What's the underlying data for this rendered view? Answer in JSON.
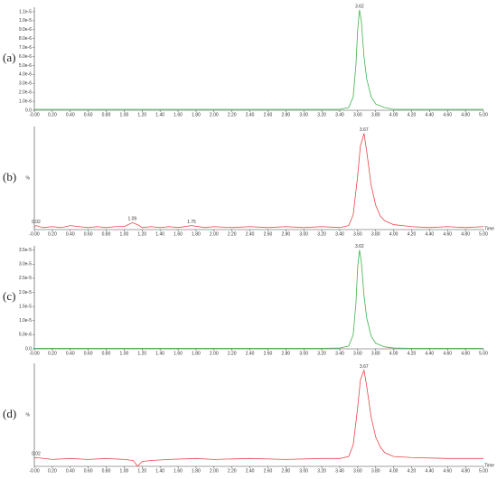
{
  "chart_data": [
    {
      "type": "line",
      "panel_label": "(a)",
      "color": "#3fb24a",
      "x": [
        0,
        0.4,
        0.8,
        1.2,
        1.6,
        2.0,
        2.4,
        2.8,
        3.2,
        3.4,
        3.5,
        3.55,
        3.58,
        3.6,
        3.62,
        3.64,
        3.67,
        3.7,
        3.75,
        3.8,
        3.9,
        4.0,
        4.2,
        4.6,
        5.0
      ],
      "values": [
        1e-07,
        1e-07,
        1e-07,
        1e-07,
        1e-07,
        1e-07,
        1e-07,
        1e-07,
        1e-07,
        1e-07,
        3e-07,
        1.5e-06,
        5e-06,
        9e-06,
        1.12e-05,
        1e-05,
        6e-06,
        3.5e-06,
        1.5e-06,
        7e-07,
        3e-07,
        1e-07,
        1e-07,
        1e-07,
        1e-07
      ],
      "annotations": [
        {
          "label": "3.62",
          "x": 3.62
        }
      ],
      "xlim": [
        0,
        5.0
      ],
      "xticks": [
        {
          "value": 0,
          "label": "-0.00"
        },
        {
          "value": 0.2,
          "label": "0.20"
        },
        {
          "value": 0.4,
          "label": "0.40"
        },
        {
          "value": 0.6,
          "label": "0.60"
        },
        {
          "value": 0.8,
          "label": "0.80"
        },
        {
          "value": 1.0,
          "label": "1.00"
        },
        {
          "value": 1.2,
          "label": "1.20"
        },
        {
          "value": 1.4,
          "label": "1.40"
        },
        {
          "value": 1.6,
          "label": "1.60"
        },
        {
          "value": 1.8,
          "label": "1.80"
        },
        {
          "value": 2.0,
          "label": "2.00"
        },
        {
          "value": 2.2,
          "label": "2.20"
        },
        {
          "value": 2.4,
          "label": "2.40"
        },
        {
          "value": 2.6,
          "label": "2.60"
        },
        {
          "value": 2.8,
          "label": "2.80"
        },
        {
          "value": 3.0,
          "label": "3.00"
        },
        {
          "value": 3.2,
          "label": "3.20"
        },
        {
          "value": 3.4,
          "label": "3.40"
        },
        {
          "value": 3.6,
          "label": "3.60"
        },
        {
          "value": 3.8,
          "label": "3.80"
        },
        {
          "value": 4.0,
          "label": "4.00"
        },
        {
          "value": 4.2,
          "label": "4.20"
        },
        {
          "value": 4.4,
          "label": "4.40"
        },
        {
          "value": 4.6,
          "label": "4.60"
        },
        {
          "value": 4.8,
          "label": "4.80"
        },
        {
          "value": 5.0,
          "label": "5.00"
        }
      ],
      "ylim": [
        0,
        1.15e-05
      ],
      "yticks": [
        {
          "value": 0,
          "label": "0.0"
        },
        {
          "value": 1e-06,
          "label": "1.0e-6"
        },
        {
          "value": 2e-06,
          "label": "2.0e-6"
        },
        {
          "value": 3e-06,
          "label": "3.0e-6"
        },
        {
          "value": 4e-06,
          "label": "4.0e-6"
        },
        {
          "value": 5e-06,
          "label": "5.0e-6"
        },
        {
          "value": 6e-06,
          "label": "6.0e-6"
        },
        {
          "value": 7e-06,
          "label": "7.0e-6"
        },
        {
          "value": 8e-06,
          "label": "8.0e-6"
        },
        {
          "value": 9e-06,
          "label": "9.0e-6"
        },
        {
          "value": 1e-05,
          "label": "1.0e-5"
        },
        {
          "value": 1.1e-05,
          "label": "1.1e-5"
        }
      ]
    },
    {
      "type": "line",
      "panel_label": "(b)",
      "color": "#e8474a",
      "y_label": "%",
      "x_label": "Time",
      "x": [
        0,
        0.02,
        0.1,
        0.2,
        0.3,
        0.4,
        0.5,
        0.6,
        0.7,
        0.8,
        0.9,
        1.0,
        1.09,
        1.15,
        1.2,
        1.3,
        1.4,
        1.5,
        1.6,
        1.75,
        1.9,
        2.0,
        2.2,
        2.4,
        2.6,
        2.8,
        3.0,
        3.2,
        3.4,
        3.5,
        3.55,
        3.6,
        3.63,
        3.67,
        3.7,
        3.75,
        3.8,
        3.85,
        3.9,
        4.0,
        4.1,
        4.2,
        4.4,
        4.6,
        4.8,
        5.0
      ],
      "values": [
        3,
        4,
        2,
        3,
        2,
        4,
        3,
        2,
        3,
        2,
        3,
        3,
        7,
        5,
        2,
        3,
        2,
        3,
        2,
        4,
        2,
        3,
        2,
        3,
        2,
        3,
        2,
        3,
        2,
        4,
        15,
        55,
        85,
        98,
        80,
        45,
        25,
        14,
        9,
        5,
        4,
        3,
        2,
        3,
        2,
        3
      ],
      "annotations": [
        {
          "label": "0.02",
          "x": 0.02
        },
        {
          "label": "1.09",
          "x": 1.09
        },
        {
          "label": "1.75",
          "x": 1.75
        },
        {
          "label": "3.67",
          "x": 3.67
        }
      ],
      "xlim": [
        0,
        5.0
      ],
      "xticks": [
        {
          "value": 0,
          "label": "-0.00"
        },
        {
          "value": 0.2,
          "label": "0.20"
        },
        {
          "value": 0.4,
          "label": "0.40"
        },
        {
          "value": 0.6,
          "label": "0.60"
        },
        {
          "value": 0.8,
          "label": "0.80"
        },
        {
          "value": 1.0,
          "label": "1.00"
        },
        {
          "value": 1.2,
          "label": "1.20"
        },
        {
          "value": 1.4,
          "label": "1.40"
        },
        {
          "value": 1.6,
          "label": "1.60"
        },
        {
          "value": 1.8,
          "label": "1.80"
        },
        {
          "value": 2.0,
          "label": "2.00"
        },
        {
          "value": 2.2,
          "label": "2.20"
        },
        {
          "value": 2.4,
          "label": "2.40"
        },
        {
          "value": 2.6,
          "label": "2.60"
        },
        {
          "value": 2.8,
          "label": "2.80"
        },
        {
          "value": 3.0,
          "label": "3.00"
        },
        {
          "value": 3.2,
          "label": "3.20"
        },
        {
          "value": 3.4,
          "label": "3.40"
        },
        {
          "value": 3.6,
          "label": "3.60"
        },
        {
          "value": 3.8,
          "label": "3.80"
        },
        {
          "value": 4.0,
          "label": "4.00"
        },
        {
          "value": 4.2,
          "label": "4.20"
        },
        {
          "value": 4.4,
          "label": "4.40"
        },
        {
          "value": 4.6,
          "label": "4.60"
        },
        {
          "value": 4.8,
          "label": "4.80"
        },
        {
          "value": 5.0,
          "label": "5.00"
        }
      ],
      "ylim": [
        0,
        105
      ],
      "yticks": []
    },
    {
      "type": "line",
      "panel_label": "(c)",
      "color": "#3fb24a",
      "x": [
        0,
        0.4,
        0.8,
        1.2,
        1.6,
        2.0,
        2.4,
        2.8,
        3.2,
        3.4,
        3.5,
        3.55,
        3.58,
        3.6,
        3.62,
        3.64,
        3.67,
        3.7,
        3.75,
        3.8,
        3.9,
        4.0,
        4.2,
        4.6,
        5.0
      ],
      "values": [
        2e-07,
        2e-07,
        2e-07,
        2e-07,
        2e-07,
        2e-07,
        2e-07,
        2e-07,
        2e-07,
        3e-07,
        1e-06,
        5e-06,
        1.6e-05,
        2.9e-05,
        3.5e-05,
        3.1e-05,
        1.9e-05,
        1.1e-05,
        4.5e-06,
        2e-06,
        7e-07,
        3e-07,
        2e-07,
        2e-07,
        2e-07
      ],
      "annotations": [
        {
          "label": "3.62",
          "x": 3.62
        }
      ],
      "xlim": [
        0,
        5.0
      ],
      "xticks": [
        {
          "value": 0,
          "label": "-0.00"
        },
        {
          "value": 0.2,
          "label": "0.20"
        },
        {
          "value": 0.4,
          "label": "0.40"
        },
        {
          "value": 0.6,
          "label": "0.60"
        },
        {
          "value": 0.8,
          "label": "0.80"
        },
        {
          "value": 1.0,
          "label": "1.00"
        },
        {
          "value": 1.2,
          "label": "1.20"
        },
        {
          "value": 1.4,
          "label": "1.40"
        },
        {
          "value": 1.6,
          "label": "1.60"
        },
        {
          "value": 1.8,
          "label": "1.80"
        },
        {
          "value": 2.0,
          "label": "2.00"
        },
        {
          "value": 2.2,
          "label": "2.20"
        },
        {
          "value": 2.4,
          "label": "2.40"
        },
        {
          "value": 2.6,
          "label": "2.60"
        },
        {
          "value": 2.8,
          "label": "2.80"
        },
        {
          "value": 3.0,
          "label": "3.00"
        },
        {
          "value": 3.2,
          "label": "3.20"
        },
        {
          "value": 3.4,
          "label": "3.40"
        },
        {
          "value": 3.6,
          "label": "3.60"
        },
        {
          "value": 3.8,
          "label": "3.80"
        },
        {
          "value": 4.0,
          "label": "4.00"
        },
        {
          "value": 4.2,
          "label": "4.20"
        },
        {
          "value": 4.4,
          "label": "4.40"
        },
        {
          "value": 4.6,
          "label": "4.60"
        },
        {
          "value": 4.8,
          "label": "4.80"
        },
        {
          "value": 5.0,
          "label": "5.00"
        }
      ],
      "ylim": [
        0,
        3.65e-05
      ],
      "yticks": [
        {
          "value": 0,
          "label": "0.0"
        },
        {
          "value": 5e-06,
          "label": "5.0e-6"
        },
        {
          "value": 1e-05,
          "label": "1.0e-5"
        },
        {
          "value": 1.5e-05,
          "label": "1.5e-5"
        },
        {
          "value": 2e-05,
          "label": "2.0e-5"
        },
        {
          "value": 2.5e-05,
          "label": "2.5e-5"
        },
        {
          "value": 3e-05,
          "label": "3.0e-5"
        },
        {
          "value": 3.5e-05,
          "label": "3.5e-5"
        }
      ]
    },
    {
      "type": "line",
      "panel_label": "(d)",
      "color": "#e8474a",
      "y_label": "%",
      "x_label": "Time",
      "x": [
        0,
        0.02,
        0.2,
        0.4,
        0.6,
        0.8,
        1.0,
        1.1,
        1.15,
        1.2,
        1.3,
        1.5,
        1.8,
        2.0,
        2.4,
        2.8,
        3.2,
        3.4,
        3.5,
        3.55,
        3.6,
        3.63,
        3.67,
        3.7,
        3.75,
        3.8,
        3.85,
        3.9,
        4.0,
        4.2,
        4.6,
        5.0
      ],
      "values": [
        8,
        9,
        7,
        8,
        7,
        8,
        7,
        6,
        0,
        5,
        6,
        7,
        8,
        7,
        8,
        7,
        8,
        8,
        10,
        22,
        60,
        88,
        98,
        82,
        50,
        30,
        20,
        14,
        10,
        9,
        8,
        8
      ],
      "annotations": [
        {
          "label": "0.02",
          "x": 0.02
        },
        {
          "label": "3.67",
          "x": 3.67
        }
      ],
      "xlim": [
        0,
        5.0
      ],
      "xticks": [
        {
          "value": 0,
          "label": "-0.00"
        },
        {
          "value": 0.2,
          "label": "0.20"
        },
        {
          "value": 0.4,
          "label": "0.40"
        },
        {
          "value": 0.6,
          "label": "0.60"
        },
        {
          "value": 0.8,
          "label": "0.80"
        },
        {
          "value": 1.0,
          "label": "1.00"
        },
        {
          "value": 1.2,
          "label": "1.20"
        },
        {
          "value": 1.4,
          "label": "1.40"
        },
        {
          "value": 1.6,
          "label": "1.60"
        },
        {
          "value": 1.8,
          "label": "1.80"
        },
        {
          "value": 2.0,
          "label": "2.00"
        },
        {
          "value": 2.2,
          "label": "2.20"
        },
        {
          "value": 2.4,
          "label": "2.40"
        },
        {
          "value": 2.6,
          "label": "2.60"
        },
        {
          "value": 2.8,
          "label": "2.80"
        },
        {
          "value": 3.0,
          "label": "3.00"
        },
        {
          "value": 3.2,
          "label": "3.20"
        },
        {
          "value": 3.4,
          "label": "3.40"
        },
        {
          "value": 3.6,
          "label": "3.60"
        },
        {
          "value": 3.8,
          "label": "3.80"
        },
        {
          "value": 4.0,
          "label": "4.00"
        },
        {
          "value": 4.2,
          "label": "4.20"
        },
        {
          "value": 4.4,
          "label": "4.40"
        },
        {
          "value": 4.6,
          "label": "4.60"
        },
        {
          "value": 4.8,
          "label": "4.80"
        },
        {
          "value": 5.0,
          "label": "5.00"
        }
      ],
      "ylim": [
        0,
        105
      ],
      "yticks": []
    }
  ]
}
